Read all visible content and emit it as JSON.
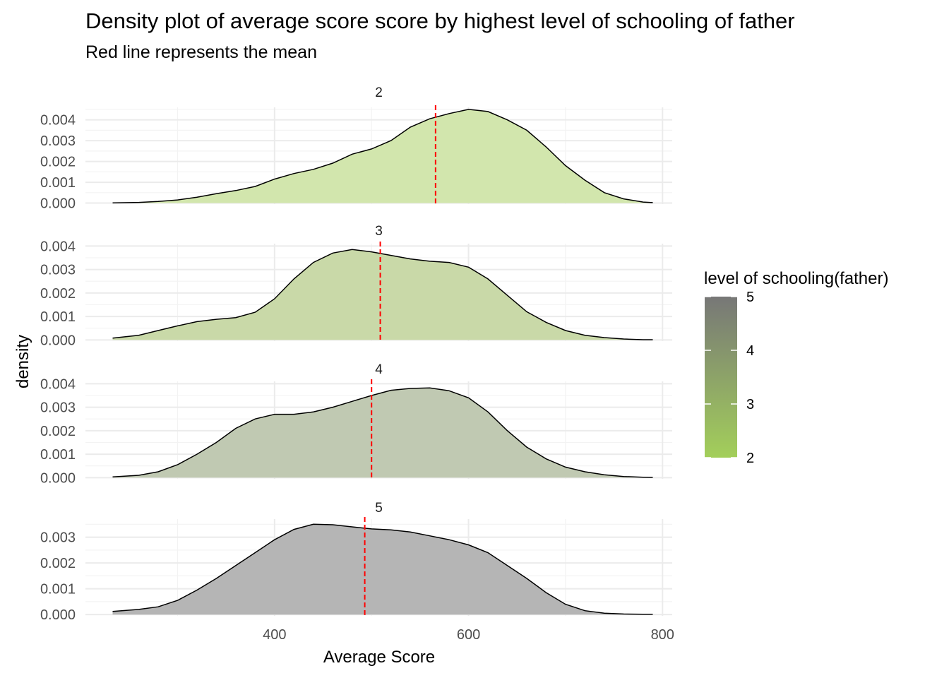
{
  "chart_data": {
    "type": "area",
    "title": "Density plot of average score score by highest level of schooling of father",
    "subtitle": "Red line represents the mean",
    "xlabel": "Average Score",
    "ylabel": "density",
    "xlim": [
      205,
      810
    ],
    "x_ticks": [
      400,
      600,
      800
    ],
    "x_tick_labels": [
      "400",
      "600",
      "800"
    ],
    "grid": true,
    "legend": {
      "title": "level of schooling(father)",
      "position": "right",
      "type": "colorbar",
      "range": [
        2,
        5
      ],
      "labels": [
        "5",
        "4",
        "3",
        "2"
      ],
      "color_low": "#a3cf5a",
      "color_high": "#777777"
    },
    "mean_line_color": "#ff0000",
    "panels": [
      {
        "strip": "2",
        "level": 2,
        "fill": "#d2e6ad",
        "mean": 566,
        "ylim": [
          -5e-05,
          0.0046
        ],
        "y_ticks": [
          0,
          0.001,
          0.002,
          0.003,
          0.004
        ],
        "y_tick_labels": [
          "0.000",
          "0.001",
          "0.002",
          "0.003",
          "0.004"
        ],
        "x": [
          233,
          260,
          280,
          300,
          320,
          340,
          360,
          380,
          400,
          420,
          440,
          460,
          480,
          500,
          520,
          540,
          560,
          580,
          600,
          620,
          640,
          660,
          680,
          700,
          720,
          740,
          760,
          780,
          790
        ],
        "y": [
          1e-05,
          3e-05,
          8e-05,
          0.00015,
          0.00028,
          0.00045,
          0.0006,
          0.0008,
          0.00115,
          0.00142,
          0.00162,
          0.00192,
          0.00235,
          0.0026,
          0.003,
          0.00365,
          0.00405,
          0.0043,
          0.0045,
          0.0044,
          0.004,
          0.0035,
          0.0027,
          0.0018,
          0.0011,
          0.0005,
          0.0002,
          5e-05,
          2e-05
        ]
      },
      {
        "strip": "3",
        "level": 3,
        "fill": "#c9d9a8",
        "mean": 509,
        "ylim": [
          -5e-05,
          0.0041
        ],
        "y_ticks": [
          0,
          0.001,
          0.002,
          0.003,
          0.004
        ],
        "y_tick_labels": [
          "0.000",
          "0.001",
          "0.002",
          "0.003",
          "0.004"
        ],
        "x": [
          233,
          260,
          280,
          300,
          320,
          340,
          360,
          380,
          400,
          420,
          440,
          460,
          480,
          500,
          520,
          540,
          560,
          580,
          600,
          620,
          640,
          660,
          680,
          700,
          720,
          740,
          760,
          780,
          790
        ],
        "y": [
          8e-05,
          0.0002,
          0.0004,
          0.0006,
          0.00078,
          0.00088,
          0.00095,
          0.00118,
          0.00175,
          0.0026,
          0.0033,
          0.0037,
          0.00385,
          0.00375,
          0.0036,
          0.00345,
          0.00335,
          0.0033,
          0.0031,
          0.0026,
          0.0019,
          0.0012,
          0.00075,
          0.0004,
          0.0002,
          0.0001,
          4e-05,
          1e-05,
          1e-05
        ]
      },
      {
        "strip": "4",
        "level": 4,
        "fill": "#c0c9b2",
        "mean": 500,
        "ylim": [
          -5e-05,
          0.0041
        ],
        "y_ticks": [
          0,
          0.001,
          0.002,
          0.003,
          0.004
        ],
        "y_tick_labels": [
          "0.000",
          "0.001",
          "0.002",
          "0.003",
          "0.004"
        ],
        "x": [
          233,
          260,
          280,
          300,
          320,
          340,
          360,
          380,
          400,
          420,
          440,
          460,
          480,
          500,
          520,
          540,
          560,
          580,
          600,
          620,
          640,
          660,
          680,
          700,
          720,
          740,
          760,
          780,
          790
        ],
        "y": [
          3e-05,
          0.0001,
          0.00025,
          0.00055,
          0.001,
          0.0015,
          0.0021,
          0.0025,
          0.0027,
          0.0027,
          0.0028,
          0.003,
          0.00325,
          0.0035,
          0.00372,
          0.0038,
          0.00382,
          0.0037,
          0.0034,
          0.0028,
          0.002,
          0.0013,
          0.0008,
          0.00045,
          0.00025,
          0.00012,
          5e-05,
          2e-05,
          1e-05
        ]
      },
      {
        "strip": "5",
        "level": 5,
        "fill": "#b5b5b5",
        "mean": 493,
        "ylim": [
          -5e-05,
          0.0037
        ],
        "y_ticks": [
          0,
          0.001,
          0.002,
          0.003
        ],
        "y_tick_labels": [
          "0.000",
          "0.001",
          "0.002",
          "0.003"
        ],
        "x": [
          233,
          260,
          280,
          300,
          320,
          340,
          360,
          380,
          400,
          420,
          440,
          460,
          480,
          500,
          520,
          540,
          560,
          580,
          600,
          620,
          640,
          660,
          680,
          700,
          720,
          740,
          760,
          780,
          790
        ],
        "y": [
          0.00012,
          0.0002,
          0.0003,
          0.00055,
          0.00095,
          0.0014,
          0.0019,
          0.0024,
          0.0029,
          0.0033,
          0.0035,
          0.00348,
          0.0034,
          0.00332,
          0.00328,
          0.0032,
          0.00305,
          0.0029,
          0.0027,
          0.0024,
          0.0019,
          0.0014,
          0.00085,
          0.0004,
          0.00015,
          5e-05,
          2e-05,
          1e-05,
          1e-05
        ]
      }
    ]
  }
}
